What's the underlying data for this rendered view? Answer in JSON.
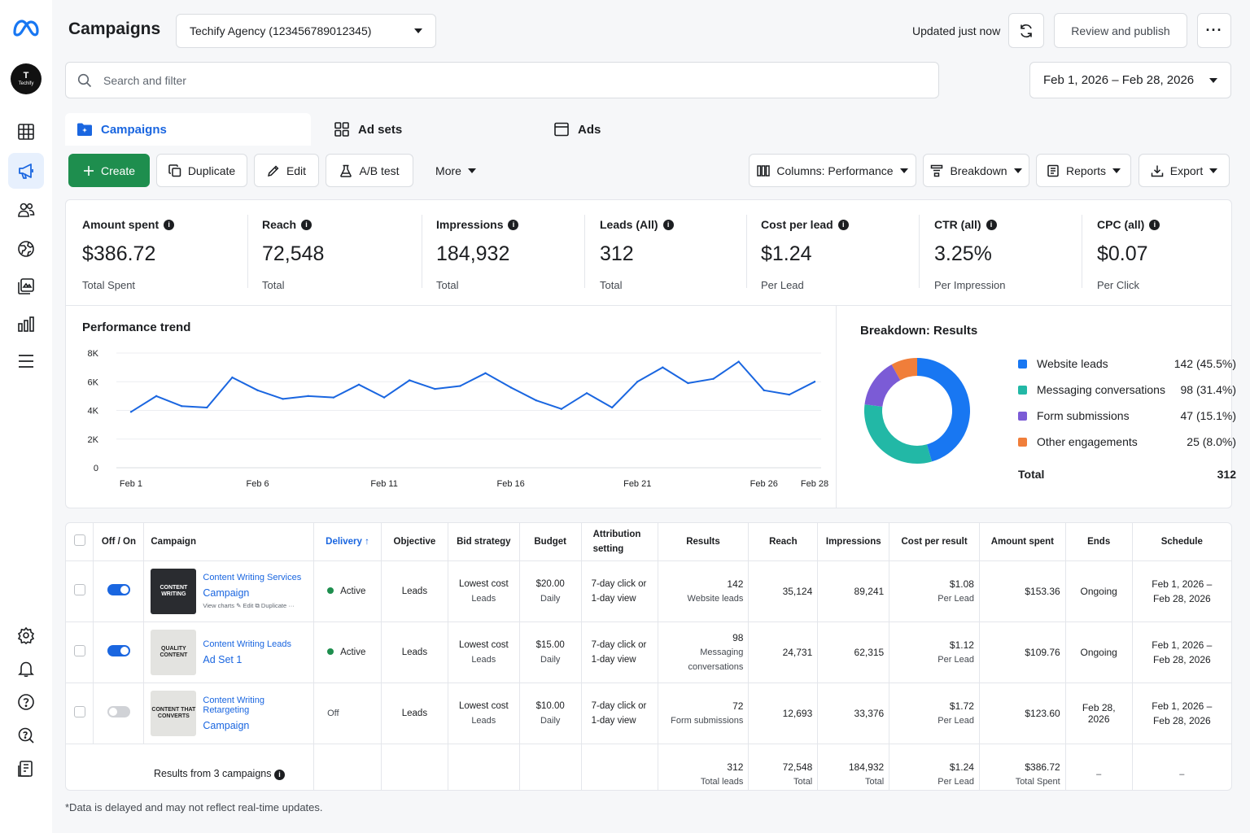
{
  "header": {
    "title": "Campaigns",
    "account": "Techify Agency (123456789012345)",
    "updated": "Updated just now",
    "review_label": "Review and publish",
    "more_label": "···"
  },
  "sidebar": {
    "avatar_letter": "T",
    "avatar_name": "Techify",
    "items": [
      "grid-icon",
      "megaphone-icon",
      "audience-icon",
      "globe-icon",
      "creative-icon",
      "bar-chart-icon",
      "menu-icon",
      "gear-icon",
      "bell-icon",
      "help-icon",
      "search-help-icon",
      "billing-icon"
    ]
  },
  "search": {
    "placeholder": "Search and filter"
  },
  "date_range": "Feb 1, 2026 – Feb 28, 2026",
  "tabs": [
    {
      "label": "Campaigns"
    },
    {
      "label": "Ad sets"
    },
    {
      "label": "Ads"
    }
  ],
  "toolbar": {
    "create": "Create",
    "duplicate": "Duplicate",
    "edit": "Edit",
    "ab_test": "A/B test",
    "more": "More",
    "columns": "Columns: Performance",
    "breakdown": "Breakdown",
    "reports": "Reports",
    "export": "Export"
  },
  "metrics": [
    {
      "label": "Amount spent",
      "value": "$386.72",
      "sub": "Total Spent"
    },
    {
      "label": "Reach",
      "value": "72,548",
      "sub": "Total"
    },
    {
      "label": "Impressions",
      "value": "184,932",
      "sub": "Total"
    },
    {
      "label": "Leads (All)",
      "value": "312",
      "sub": "Total"
    },
    {
      "label": "Cost per lead",
      "value": "$1.24",
      "sub": "Per Lead"
    },
    {
      "label": "CTR (all)",
      "value": "3.25%",
      "sub": "Per Impression"
    },
    {
      "label": "CPC (all)",
      "value": "$0.07",
      "sub": "Per Click"
    }
  ],
  "chart_data": [
    {
      "type": "line",
      "title": "Performance trend",
      "x_ticks": [
        "Feb 1",
        "Feb 6",
        "Feb 11",
        "Feb 16",
        "Feb 21",
        "Feb 26",
        "Feb 28"
      ],
      "x_tick_days": [
        1,
        6,
        11,
        16,
        21,
        26,
        28
      ],
      "y_ticks": [
        "8K",
        "6K",
        "4K",
        "2K",
        "0"
      ],
      "y_tick_values": [
        8000,
        6000,
        4000,
        2000,
        0
      ],
      "ylim": [
        0,
        8000
      ],
      "grid": true,
      "x": [
        1,
        2,
        3,
        4,
        5,
        6,
        7,
        8,
        9,
        10,
        11,
        12,
        13,
        14,
        15,
        16,
        17,
        18,
        19,
        20,
        21,
        22,
        23,
        24,
        25,
        26,
        27,
        28
      ],
      "values": [
        3900,
        5000,
        4300,
        4200,
        6300,
        5400,
        4800,
        5000,
        4900,
        5800,
        4900,
        6100,
        5500,
        5700,
        6600,
        5600,
        4700,
        4100,
        5200,
        4200,
        6000,
        7000,
        5900,
        6200,
        7400,
        5400,
        5100,
        6000
      ]
    },
    {
      "type": "pie",
      "title": "Breakdown: Results",
      "labels": [
        "Website leads",
        "Messaging conversations",
        "Form submissions",
        "Other engagements"
      ],
      "values": [
        142,
        98,
        47,
        25
      ],
      "display": [
        "142 (45.5%)",
        "98 (31.4%)",
        "47 (15.1%)",
        "25 (8.0%)"
      ],
      "colors": [
        "#1877f2",
        "#22b8a6",
        "#7b5bd6",
        "#f07e3a"
      ],
      "total_label": "Total",
      "total_value": "312"
    }
  ],
  "table": {
    "headers": {
      "offon": "Off / On",
      "campaign": "Campaign",
      "delivery": "Delivery ↑",
      "objective": "Objective",
      "bid": "Bid strategy",
      "budget": "Budget",
      "attr1": "Attribution",
      "attr2": "setting",
      "results": "Results",
      "reach": "Reach",
      "impressions": "Impressions",
      "cpr": "Cost per result",
      "spent": "Amount spent",
      "ends": "Ends",
      "schedule": "Schedule"
    },
    "rows": [
      {
        "on": true,
        "thumb": "CONTENT WRITING",
        "name": "Content Writing Services",
        "type": "Campaign",
        "actions": "View charts  ✎ Edit  ⧉ Duplicate  ···",
        "delivery": "Active",
        "objective": "Leads",
        "bid1": "Lowest cost",
        "bid2": "Leads",
        "budget1": "$20.00",
        "budget2": "Daily",
        "attr1": "7-day click or",
        "attr2": "1-day view",
        "results1": "142",
        "results2": "Website leads",
        "reach": "35,124",
        "impressions": "89,241",
        "cpr1": "$1.08",
        "cpr2": "Per Lead",
        "spent": "$153.36",
        "ends": "Ongoing",
        "sched1": "Feb 1, 2026 –",
        "sched2": "Feb 28, 2026"
      },
      {
        "on": true,
        "thumb": "QUALITY CONTENT",
        "name": "Content Writing Leads",
        "type": "Ad Set 1",
        "actions": "",
        "delivery": "Active",
        "objective": "Leads",
        "bid1": "Lowest cost",
        "bid2": "Leads",
        "budget1": "$15.00",
        "budget2": "Daily",
        "attr1": "7-day click or",
        "attr2": "1-day view",
        "results1": "98",
        "results2": "Messaging",
        "results3": "conversations",
        "reach": "24,731",
        "impressions": "62,315",
        "cpr1": "$1.12",
        "cpr2": "Per Lead",
        "spent": "$109.76",
        "ends": "Ongoing",
        "sched1": "Feb 1, 2026 –",
        "sched2": "Feb 28, 2026"
      },
      {
        "on": false,
        "thumb": "CONTENT THAT CONVERTS",
        "name": "Content Writing Retargeting",
        "type": "Campaign",
        "actions": "",
        "delivery": "Off",
        "objective": "Leads",
        "bid1": "Lowest cost",
        "bid2": "Leads",
        "budget1": "$10.00",
        "budget2": "Daily",
        "attr1": "7-day click or",
        "attr2": "1-day view",
        "results1": "72",
        "results2": "Form submissions",
        "reach": "12,693",
        "impressions": "33,376",
        "cpr1": "$1.72",
        "cpr2": "Per Lead",
        "spent": "$123.60",
        "ends": "Feb 28, 2026",
        "sched1": "Feb 1, 2026 –",
        "sched2": "Feb 28, 2026"
      }
    ],
    "summary": {
      "label": "Results from 3 campaigns",
      "results1": "312",
      "results2": "Total leads",
      "reach1": "72,548",
      "reach2": "Total",
      "imp1": "184,932",
      "imp2": "Total",
      "cpr1": "$1.24",
      "cpr2": "Per Lead",
      "spent1": "$386.72",
      "spent2": "Total Spent",
      "ends": "–",
      "schedule": "–"
    }
  },
  "footnote": "*Data is delayed and may not reflect real-time updates."
}
